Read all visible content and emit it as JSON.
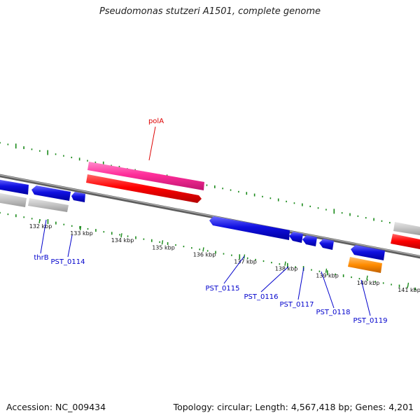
{
  "title": "Pseudomonas stutzeri A1501, complete genome",
  "footer": {
    "accession_label": "Accession:",
    "accession": "NC_009434",
    "topology_label": "Topology:",
    "topology": "circular",
    "length_label": "Length:",
    "length": "4,567,418 bp",
    "genes_label": "Genes:",
    "genes": "4,201"
  },
  "ticks": [
    {
      "label": "132 kbp",
      "pos_kbp": 132
    },
    {
      "label": "133 kbp",
      "pos_kbp": 133
    },
    {
      "label": "134 kbp",
      "pos_kbp": 134
    },
    {
      "label": "135 kbp",
      "pos_kbp": 135
    },
    {
      "label": "136 kbp",
      "pos_kbp": 136
    },
    {
      "label": "137 kbp",
      "pos_kbp": 137
    },
    {
      "label": "138 kbp",
      "pos_kbp": 138
    },
    {
      "label": "139 kbp",
      "pos_kbp": 139
    },
    {
      "label": "140 kbp",
      "pos_kbp": 140
    },
    {
      "label": "141 kbp",
      "pos_kbp": 141
    }
  ],
  "genes": [
    {
      "name": "thrB",
      "color": "#0000dd"
    },
    {
      "name": "PST_0114",
      "color": "#0000dd"
    },
    {
      "name": "polA",
      "color": "#dd0000"
    },
    {
      "name": "PST_0115",
      "color": "#0000dd"
    },
    {
      "name": "PST_0116",
      "color": "#0000dd"
    },
    {
      "name": "PST_0117",
      "color": "#0000dd"
    },
    {
      "name": "PST_0118",
      "color": "#0000dd"
    },
    {
      "name": "PST_0119",
      "color": "#0000dd"
    }
  ],
  "colors": {
    "cds_forward": "#ff0000",
    "gene_forward": "#ff2e9a",
    "cds_reverse": "#1010e0",
    "gene_reverse": "#bdbdbd",
    "misc_feature": "#ff8c00",
    "backbone": "#7a7a7a",
    "gc_ticks": "#1a8a1a",
    "label_blue": "#0000cc",
    "label_red": "#dd0000"
  }
}
